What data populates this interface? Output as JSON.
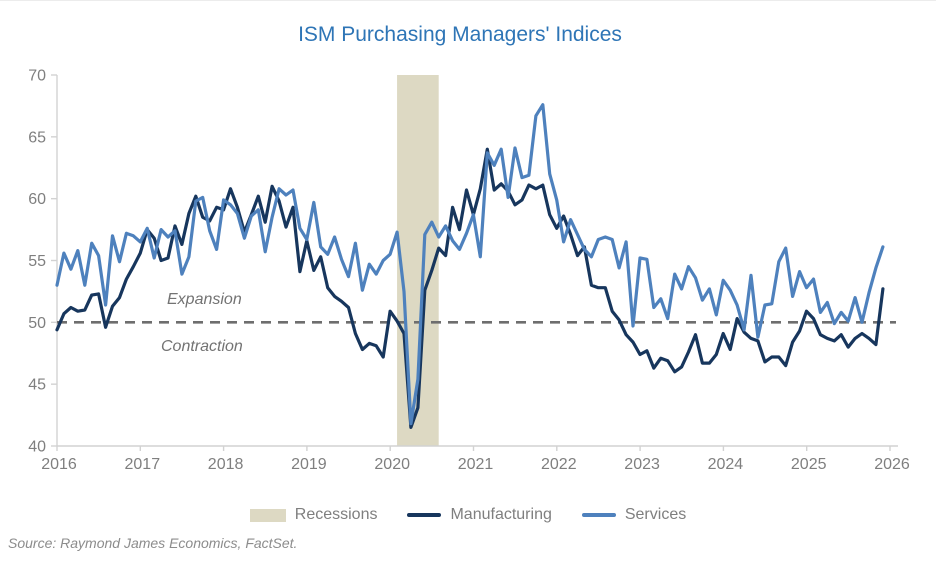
{
  "figure": {
    "title": "ISM Purchasing Managers' Indices",
    "title_color": "#2E75B6",
    "source": "Source: Raymond James Economics, FactSet."
  },
  "annotations": {
    "above_line": "Expansion",
    "below_line": "Contraction",
    "reference_value": 50
  },
  "legend": [
    {
      "label": "Recessions",
      "type": "area",
      "color": "#DDD9C3"
    },
    {
      "label": "Manufacturing",
      "type": "line",
      "color": "#17365D"
    },
    {
      "label": "Services",
      "type": "line",
      "color": "#4E81BD"
    }
  ],
  "chart_data": {
    "type": "line",
    "title": "ISM Purchasing Managers' Indices",
    "x_start": "2016-01",
    "x_frequency": "monthly",
    "x_tick_labels": [
      "2016",
      "2017",
      "2018",
      "2019",
      "2020",
      "2021",
      "2022",
      "2023",
      "2024",
      "2025",
      "2026"
    ],
    "ylim": [
      40,
      70
    ],
    "y_ticks": [
      40,
      45,
      50,
      55,
      60,
      65,
      70
    ],
    "grid": false,
    "legend_position": "bottom",
    "reference_line": {
      "value": 50,
      "style": "dashed",
      "color": "#6E6E6E"
    },
    "recession_bands": [
      {
        "start": "2020-02",
        "end": "2020-08",
        "color": "#DDD9C3"
      }
    ],
    "series": [
      {
        "name": "Manufacturing",
        "color": "#17365D",
        "values": [
          49.4,
          50.7,
          51.2,
          50.9,
          51.0,
          52.2,
          52.3,
          49.6,
          51.3,
          52.0,
          53.5,
          54.5,
          55.6,
          57.5,
          56.8,
          55.0,
          55.2,
          57.8,
          56.3,
          58.8,
          60.2,
          58.5,
          58.2,
          59.3,
          59.1,
          60.8,
          59.3,
          57.3,
          58.7,
          60.2,
          58.1,
          61.0,
          59.8,
          57.7,
          59.3,
          54.1,
          56.6,
          54.2,
          55.3,
          52.8,
          52.1,
          51.7,
          51.2,
          49.1,
          47.8,
          48.3,
          48.1,
          47.2,
          50.9,
          50.1,
          49.1,
          41.5,
          43.1,
          52.6,
          54.2,
          56.0,
          55.4,
          59.3,
          57.5,
          60.7,
          58.7,
          60.8,
          64.0,
          60.7,
          61.2,
          60.6,
          59.5,
          59.9,
          61.1,
          60.8,
          61.1,
          58.7,
          57.6,
          58.6,
          57.1,
          55.4,
          56.1,
          53.0,
          52.8,
          52.8,
          50.9,
          50.2,
          49.0,
          48.4,
          47.4,
          47.7,
          46.3,
          47.1,
          46.9,
          46.0,
          46.4,
          47.6,
          49.0,
          46.7,
          46.7,
          47.4,
          49.1,
          47.8,
          50.3,
          49.2,
          48.7,
          48.5,
          46.8,
          47.2,
          47.2,
          46.5,
          48.4,
          49.3,
          50.9,
          50.3,
          49.0,
          48.7,
          48.5,
          49.0,
          48.0,
          48.7,
          49.1,
          48.7,
          48.2,
          52.7
        ]
      },
      {
        "name": "Services",
        "color": "#4E81BD",
        "values": [
          53.0,
          55.6,
          54.3,
          55.8,
          53.0,
          56.4,
          55.4,
          51.4,
          57.0,
          54.9,
          57.2,
          57.0,
          56.5,
          57.6,
          55.2,
          57.5,
          56.9,
          57.4,
          53.9,
          55.3,
          59.8,
          60.1,
          57.4,
          55.9,
          59.9,
          59.5,
          58.8,
          56.8,
          58.6,
          59.1,
          55.7,
          58.5,
          60.8,
          60.3,
          60.7,
          57.6,
          56.7,
          59.7,
          56.1,
          55.5,
          56.9,
          55.1,
          53.7,
          56.4,
          52.6,
          54.7,
          53.9,
          55.0,
          55.5,
          57.3,
          52.5,
          41.8,
          45.4,
          57.1,
          58.1,
          56.9,
          57.8,
          56.6,
          55.9,
          57.2,
          58.7,
          55.3,
          63.7,
          62.7,
          64.0,
          60.1,
          64.1,
          61.7,
          61.9,
          66.7,
          67.6,
          62.0,
          59.9,
          56.5,
          58.3,
          57.1,
          55.9,
          55.3,
          56.7,
          56.9,
          56.7,
          54.4,
          56.5,
          49.7,
          55.2,
          55.1,
          51.2,
          51.9,
          50.3,
          53.9,
          52.7,
          54.5,
          53.6,
          51.8,
          52.7,
          50.6,
          53.4,
          52.6,
          51.4,
          49.4,
          53.8,
          48.8,
          51.4,
          51.5,
          54.9,
          56.0,
          52.1,
          54.1,
          52.8,
          53.5,
          50.8,
          51.6,
          49.9,
          50.8,
          50.1,
          52.0,
          50.0,
          52.4,
          54.4,
          56.1
        ]
      }
    ]
  }
}
